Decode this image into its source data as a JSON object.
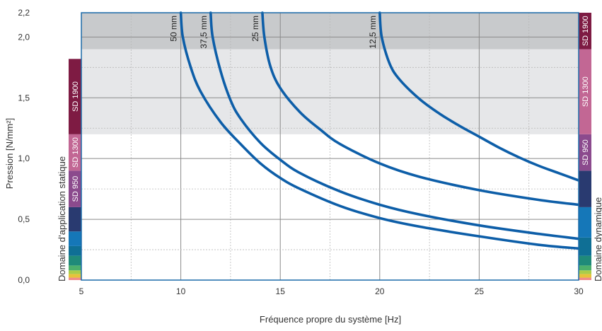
{
  "chart_data": {
    "type": "line",
    "xlabel": "Fréquence propre du système [Hz]",
    "ylabel": "Pression [N/mm²]",
    "xlim": [
      5,
      30
    ],
    "ylim": [
      0,
      2.2
    ],
    "x_ticks": [
      5,
      10,
      15,
      20,
      25,
      30
    ],
    "x_tick_labels": [
      "5",
      "10",
      "15",
      "20",
      "25",
      "30"
    ],
    "y_ticks": [
      0.0,
      0.5,
      1.0,
      1.5,
      2.0,
      2.2
    ],
    "y_tick_labels": [
      "0,0",
      "0,5",
      "1,0",
      "1,5",
      "2,0",
      "2,2"
    ],
    "grid": true,
    "shaded_regions": [
      {
        "y_from": 1.2,
        "y_to": 1.9,
        "color": "#e6e7e9"
      },
      {
        "y_from": 1.9,
        "y_to": 2.2,
        "color": "#c8cacc"
      }
    ],
    "series": [
      {
        "name": "50 mm",
        "color": "#0d5ea8",
        "points": [
          [
            10.0,
            2.2
          ],
          [
            10.1,
            2.0
          ],
          [
            10.5,
            1.75
          ],
          [
            11,
            1.55
          ],
          [
            12,
            1.3
          ],
          [
            13,
            1.12
          ],
          [
            14,
            0.96
          ],
          [
            15,
            0.84
          ],
          [
            16,
            0.75
          ],
          [
            18,
            0.61
          ],
          [
            20,
            0.51
          ],
          [
            22,
            0.44
          ],
          [
            25,
            0.36
          ],
          [
            28,
            0.29
          ],
          [
            30,
            0.26
          ]
        ]
      },
      {
        "name": "37,5 mm",
        "color": "#0d5ea8",
        "points": [
          [
            11.5,
            2.2
          ],
          [
            11.6,
            2.0
          ],
          [
            12,
            1.72
          ],
          [
            12.5,
            1.48
          ],
          [
            13,
            1.33
          ],
          [
            14,
            1.13
          ],
          [
            15,
            0.99
          ],
          [
            16,
            0.88
          ],
          [
            18,
            0.73
          ],
          [
            20,
            0.62
          ],
          [
            22,
            0.54
          ],
          [
            25,
            0.45
          ],
          [
            28,
            0.38
          ],
          [
            30,
            0.34
          ]
        ]
      },
      {
        "name": "25 mm",
        "color": "#0d5ea8",
        "points": [
          [
            14.1,
            2.2
          ],
          [
            14.2,
            2.0
          ],
          [
            14.5,
            1.76
          ],
          [
            15,
            1.58
          ],
          [
            16,
            1.38
          ],
          [
            17,
            1.24
          ],
          [
            18,
            1.12
          ],
          [
            20,
            0.96
          ],
          [
            22,
            0.85
          ],
          [
            25,
            0.74
          ],
          [
            28,
            0.66
          ],
          [
            30,
            0.62
          ]
        ]
      },
      {
        "name": "12,5 mm",
        "color": "#0d5ea8",
        "points": [
          [
            20.0,
            2.2
          ],
          [
            20.1,
            2.0
          ],
          [
            20.5,
            1.78
          ],
          [
            21,
            1.65
          ],
          [
            22,
            1.49
          ],
          [
            23,
            1.37
          ],
          [
            24,
            1.27
          ],
          [
            25,
            1.18
          ],
          [
            26,
            1.09
          ],
          [
            27,
            1.01
          ],
          [
            28,
            0.94
          ],
          [
            29,
            0.88
          ],
          [
            30,
            0.82
          ]
        ]
      }
    ],
    "left_bar": {
      "label": "Domaine d’application statique",
      "bands": [
        {
          "y_from": 0.0,
          "y_to": 0.02,
          "color": "#f08a8a",
          "label": ""
        },
        {
          "y_from": 0.02,
          "y_to": 0.05,
          "color": "#e6c33a",
          "label": ""
        },
        {
          "y_from": 0.05,
          "y_to": 0.08,
          "color": "#a9cc4a",
          "label": ""
        },
        {
          "y_from": 0.08,
          "y_to": 0.12,
          "color": "#4caf6b",
          "label": ""
        },
        {
          "y_from": 0.12,
          "y_to": 0.2,
          "color": "#1f8a79",
          "label": ""
        },
        {
          "y_from": 0.2,
          "y_to": 0.28,
          "color": "#0f6f95",
          "label": ""
        },
        {
          "y_from": 0.28,
          "y_to": 0.4,
          "color": "#1577b8",
          "label": ""
        },
        {
          "y_from": 0.4,
          "y_to": 0.6,
          "color": "#293a70",
          "label": ""
        },
        {
          "y_from": 0.6,
          "y_to": 0.9,
          "color": "#8b4a8d",
          "label": "SD 950"
        },
        {
          "y_from": 0.9,
          "y_to": 1.2,
          "color": "#c26794",
          "label": "SD 1300"
        },
        {
          "y_from": 1.2,
          "y_to": 1.82,
          "color": "#7e1b43",
          "label": "SD 1900"
        }
      ]
    },
    "right_bar": {
      "label": "Domaine dynamique",
      "bands": [
        {
          "y_from": 0.0,
          "y_to": 0.02,
          "color": "#f08a8a",
          "label": ""
        },
        {
          "y_from": 0.02,
          "y_to": 0.05,
          "color": "#e6c33a",
          "label": ""
        },
        {
          "y_from": 0.05,
          "y_to": 0.08,
          "color": "#a9cc4a",
          "label": ""
        },
        {
          "y_from": 0.08,
          "y_to": 0.12,
          "color": "#4caf6b",
          "label": ""
        },
        {
          "y_from": 0.12,
          "y_to": 0.2,
          "color": "#1f8a79",
          "label": ""
        },
        {
          "y_from": 0.2,
          "y_to": 0.35,
          "color": "#0f6f95",
          "label": ""
        },
        {
          "y_from": 0.35,
          "y_to": 0.6,
          "color": "#1577b8",
          "label": ""
        },
        {
          "y_from": 0.6,
          "y_to": 0.9,
          "color": "#293a70",
          "label": ""
        },
        {
          "y_from": 0.9,
          "y_to": 1.2,
          "color": "#8b4a8d",
          "label": "SD 950"
        },
        {
          "y_from": 1.2,
          "y_to": 1.9,
          "color": "#c26794",
          "label": "SD 1300"
        },
        {
          "y_from": 1.9,
          "y_to": 2.2,
          "color": "#7e1b43",
          "label": "SD 1900"
        }
      ]
    }
  }
}
